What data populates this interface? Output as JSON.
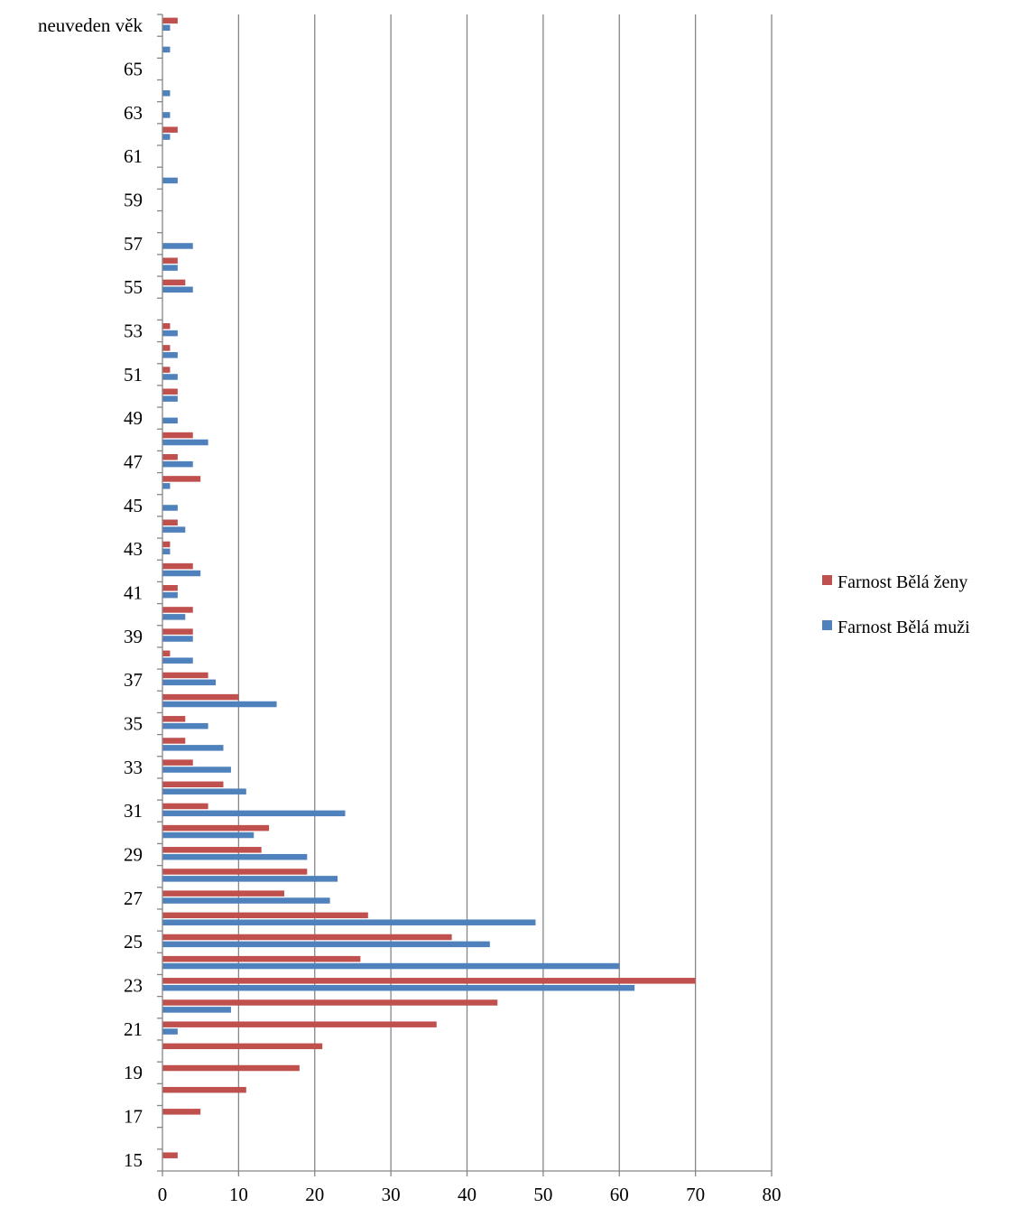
{
  "chart_data": {
    "type": "bar",
    "orientation": "horizontal",
    "categories": [
      "15",
      "16",
      "17",
      "18",
      "19",
      "20",
      "21",
      "22",
      "23",
      "24",
      "25",
      "26",
      "27",
      "28",
      "29",
      "30",
      "31",
      "32",
      "33",
      "34",
      "35",
      "36",
      "37",
      "38",
      "39",
      "40",
      "41",
      "42",
      "43",
      "44",
      "45",
      "46",
      "47",
      "48",
      "49",
      "50",
      "51",
      "52",
      "53",
      "54",
      "55",
      "56",
      "57",
      "58",
      "59",
      "60",
      "61",
      "62",
      "63",
      "64",
      "65",
      "66",
      "neuveden věk"
    ],
    "category_tick_labels": [
      "15",
      "",
      "17",
      "",
      "19",
      "",
      "21",
      "",
      "23",
      "",
      "25",
      "",
      "27",
      "",
      "29",
      "",
      "31",
      "",
      "33",
      "",
      "35",
      "",
      "37",
      "",
      "39",
      "",
      "41",
      "",
      "43",
      "",
      "45",
      "",
      "47",
      "",
      "49",
      "",
      "51",
      "",
      "53",
      "",
      "55",
      "",
      "57",
      "",
      "59",
      "",
      "61",
      "",
      "63",
      "",
      "65",
      "",
      "neuveden věk"
    ],
    "series": [
      {
        "name": "Farnost Bělá ženy",
        "color": "#C0504D",
        "values": [
          2,
          0,
          5,
          11,
          18,
          21,
          36,
          44,
          70,
          26,
          38,
          27,
          16,
          19,
          13,
          14,
          6,
          8,
          4,
          3,
          3,
          10,
          6,
          1,
          4,
          4,
          2,
          4,
          1,
          2,
          0,
          5,
          2,
          4,
          0,
          2,
          1,
          1,
          1,
          0,
          3,
          2,
          0,
          0,
          0,
          0,
          0,
          2,
          0,
          0,
          0,
          0,
          2
        ]
      },
      {
        "name": "Farnost Bělá muži",
        "color": "#4F81BD",
        "values": [
          0,
          0,
          0,
          0,
          0,
          0,
          2,
          9,
          62,
          60,
          43,
          49,
          22,
          23,
          19,
          12,
          24,
          11,
          9,
          8,
          6,
          15,
          7,
          4,
          4,
          3,
          2,
          5,
          1,
          3,
          2,
          1,
          4,
          6,
          2,
          2,
          2,
          2,
          2,
          0,
          4,
          2,
          4,
          0,
          0,
          2,
          0,
          1,
          1,
          1,
          0,
          1,
          1
        ]
      }
    ],
    "xlim": [
      0,
      80
    ],
    "x_ticks": [
      "0",
      "10",
      "20",
      "30",
      "40",
      "50",
      "60",
      "70",
      "80"
    ],
    "grid": "vertical",
    "legend_position": "right"
  }
}
